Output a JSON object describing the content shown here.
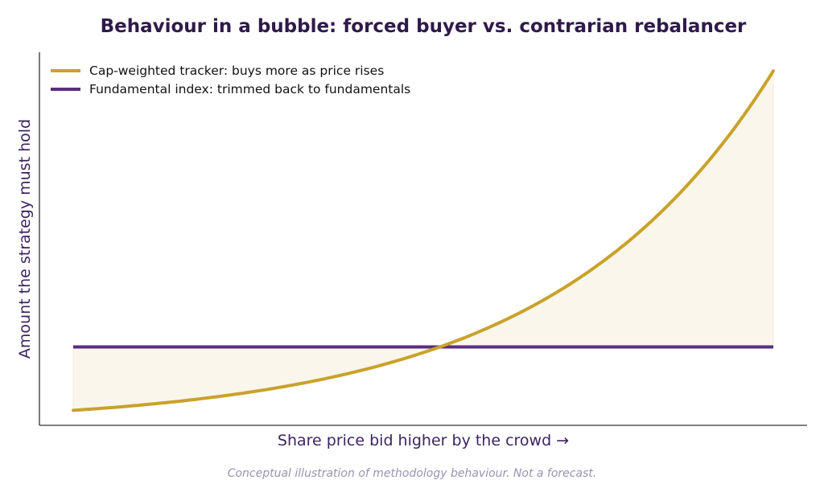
{
  "chart_data": {
    "type": "line",
    "title": "Behaviour in a bubble: forced buyer vs. contrarian rebalancer",
    "xlabel": "Share price bid higher by the crowd  →",
    "ylabel": "Amount the strategy must hold",
    "caption": "Conceptual illustration of methodology behaviour. Not a forecast.",
    "x_ticks": "none",
    "y_ticks": "none",
    "grid": false,
    "legend_placement": "top-left",
    "xlim": [
      0,
      1
    ],
    "ylim": [
      0,
      1
    ],
    "shaded_between_series": true,
    "series": [
      {
        "name": "Cap-weighted tracker: buys more as price rises",
        "color": "#c9a22a",
        "x": [
          0,
          0.1,
          0.2,
          0.3,
          0.4,
          0.5,
          0.6,
          0.7,
          0.8,
          0.9,
          1.0
        ],
        "values": [
          0.04,
          0.06,
          0.09,
          0.13,
          0.18,
          0.25,
          0.34,
          0.46,
          0.61,
          0.78,
          0.95
        ]
      },
      {
        "name": "Fundamental index: trimmed back to fundamentals",
        "color": "#5a2d82",
        "x": [
          0,
          1.0
        ],
        "values": [
          0.21,
          0.21
        ]
      }
    ]
  },
  "colors": {
    "fill": "#faf6ec",
    "axis": "#333333"
  }
}
